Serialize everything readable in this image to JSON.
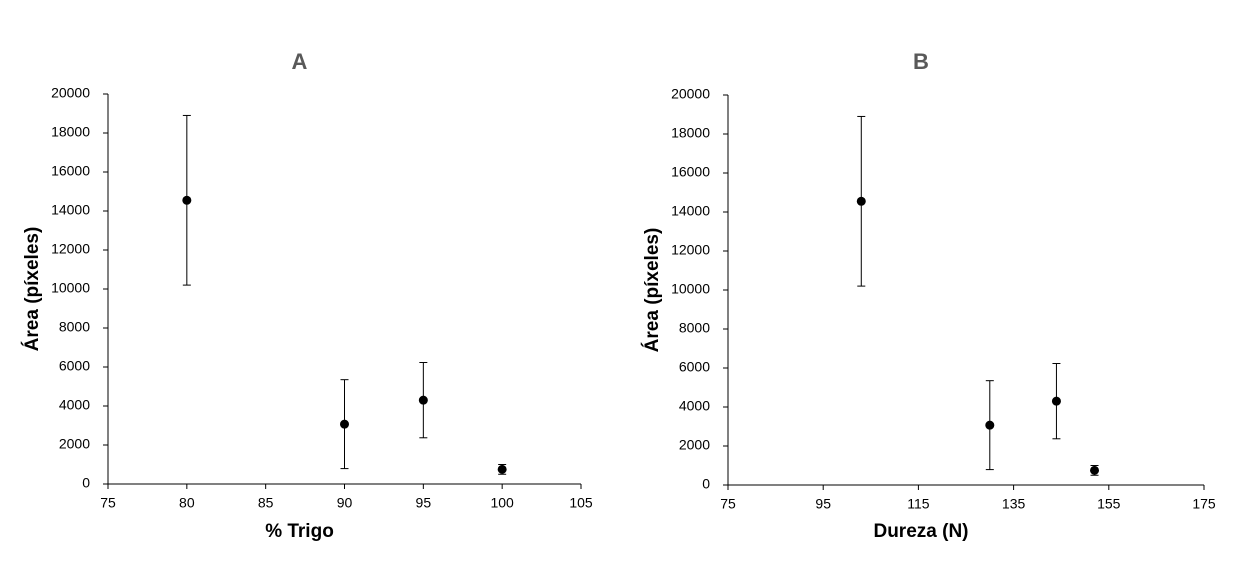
{
  "chart_data": [
    {
      "type": "scatter",
      "title": "A",
      "xlabel": "% Trigo",
      "ylabel": "Área (píxeles)",
      "x": [
        80,
        90,
        95,
        100
      ],
      "values": [
        14550,
        3070,
        4300,
        750
      ],
      "errors": [
        4350,
        2280,
        1930,
        250
      ],
      "color": "#000000",
      "xlim": [
        75,
        105
      ],
      "xticks": [
        75,
        80,
        85,
        90,
        95,
        100,
        105
      ],
      "ylim": [
        0,
        20000
      ],
      "yticks": [
        0,
        2000,
        4000,
        6000,
        8000,
        10000,
        12000,
        14000,
        16000,
        18000,
        20000
      ]
    },
    {
      "type": "scatter",
      "title": "B",
      "xlabel": "Dureza (N)",
      "ylabel": "Área (píxeles)",
      "x": [
        103,
        130,
        144,
        152
      ],
      "values": [
        14550,
        3070,
        4300,
        750
      ],
      "errors": [
        4350,
        2280,
        1930,
        250
      ],
      "color": "#000000",
      "xlim": [
        75,
        175
      ],
      "xticks": [
        75,
        95,
        115,
        135,
        155,
        175
      ],
      "ylim": [
        0,
        20000
      ],
      "yticks": [
        0,
        2000,
        4000,
        6000,
        8000,
        10000,
        12000,
        14000,
        16000,
        18000,
        20000
      ]
    }
  ]
}
